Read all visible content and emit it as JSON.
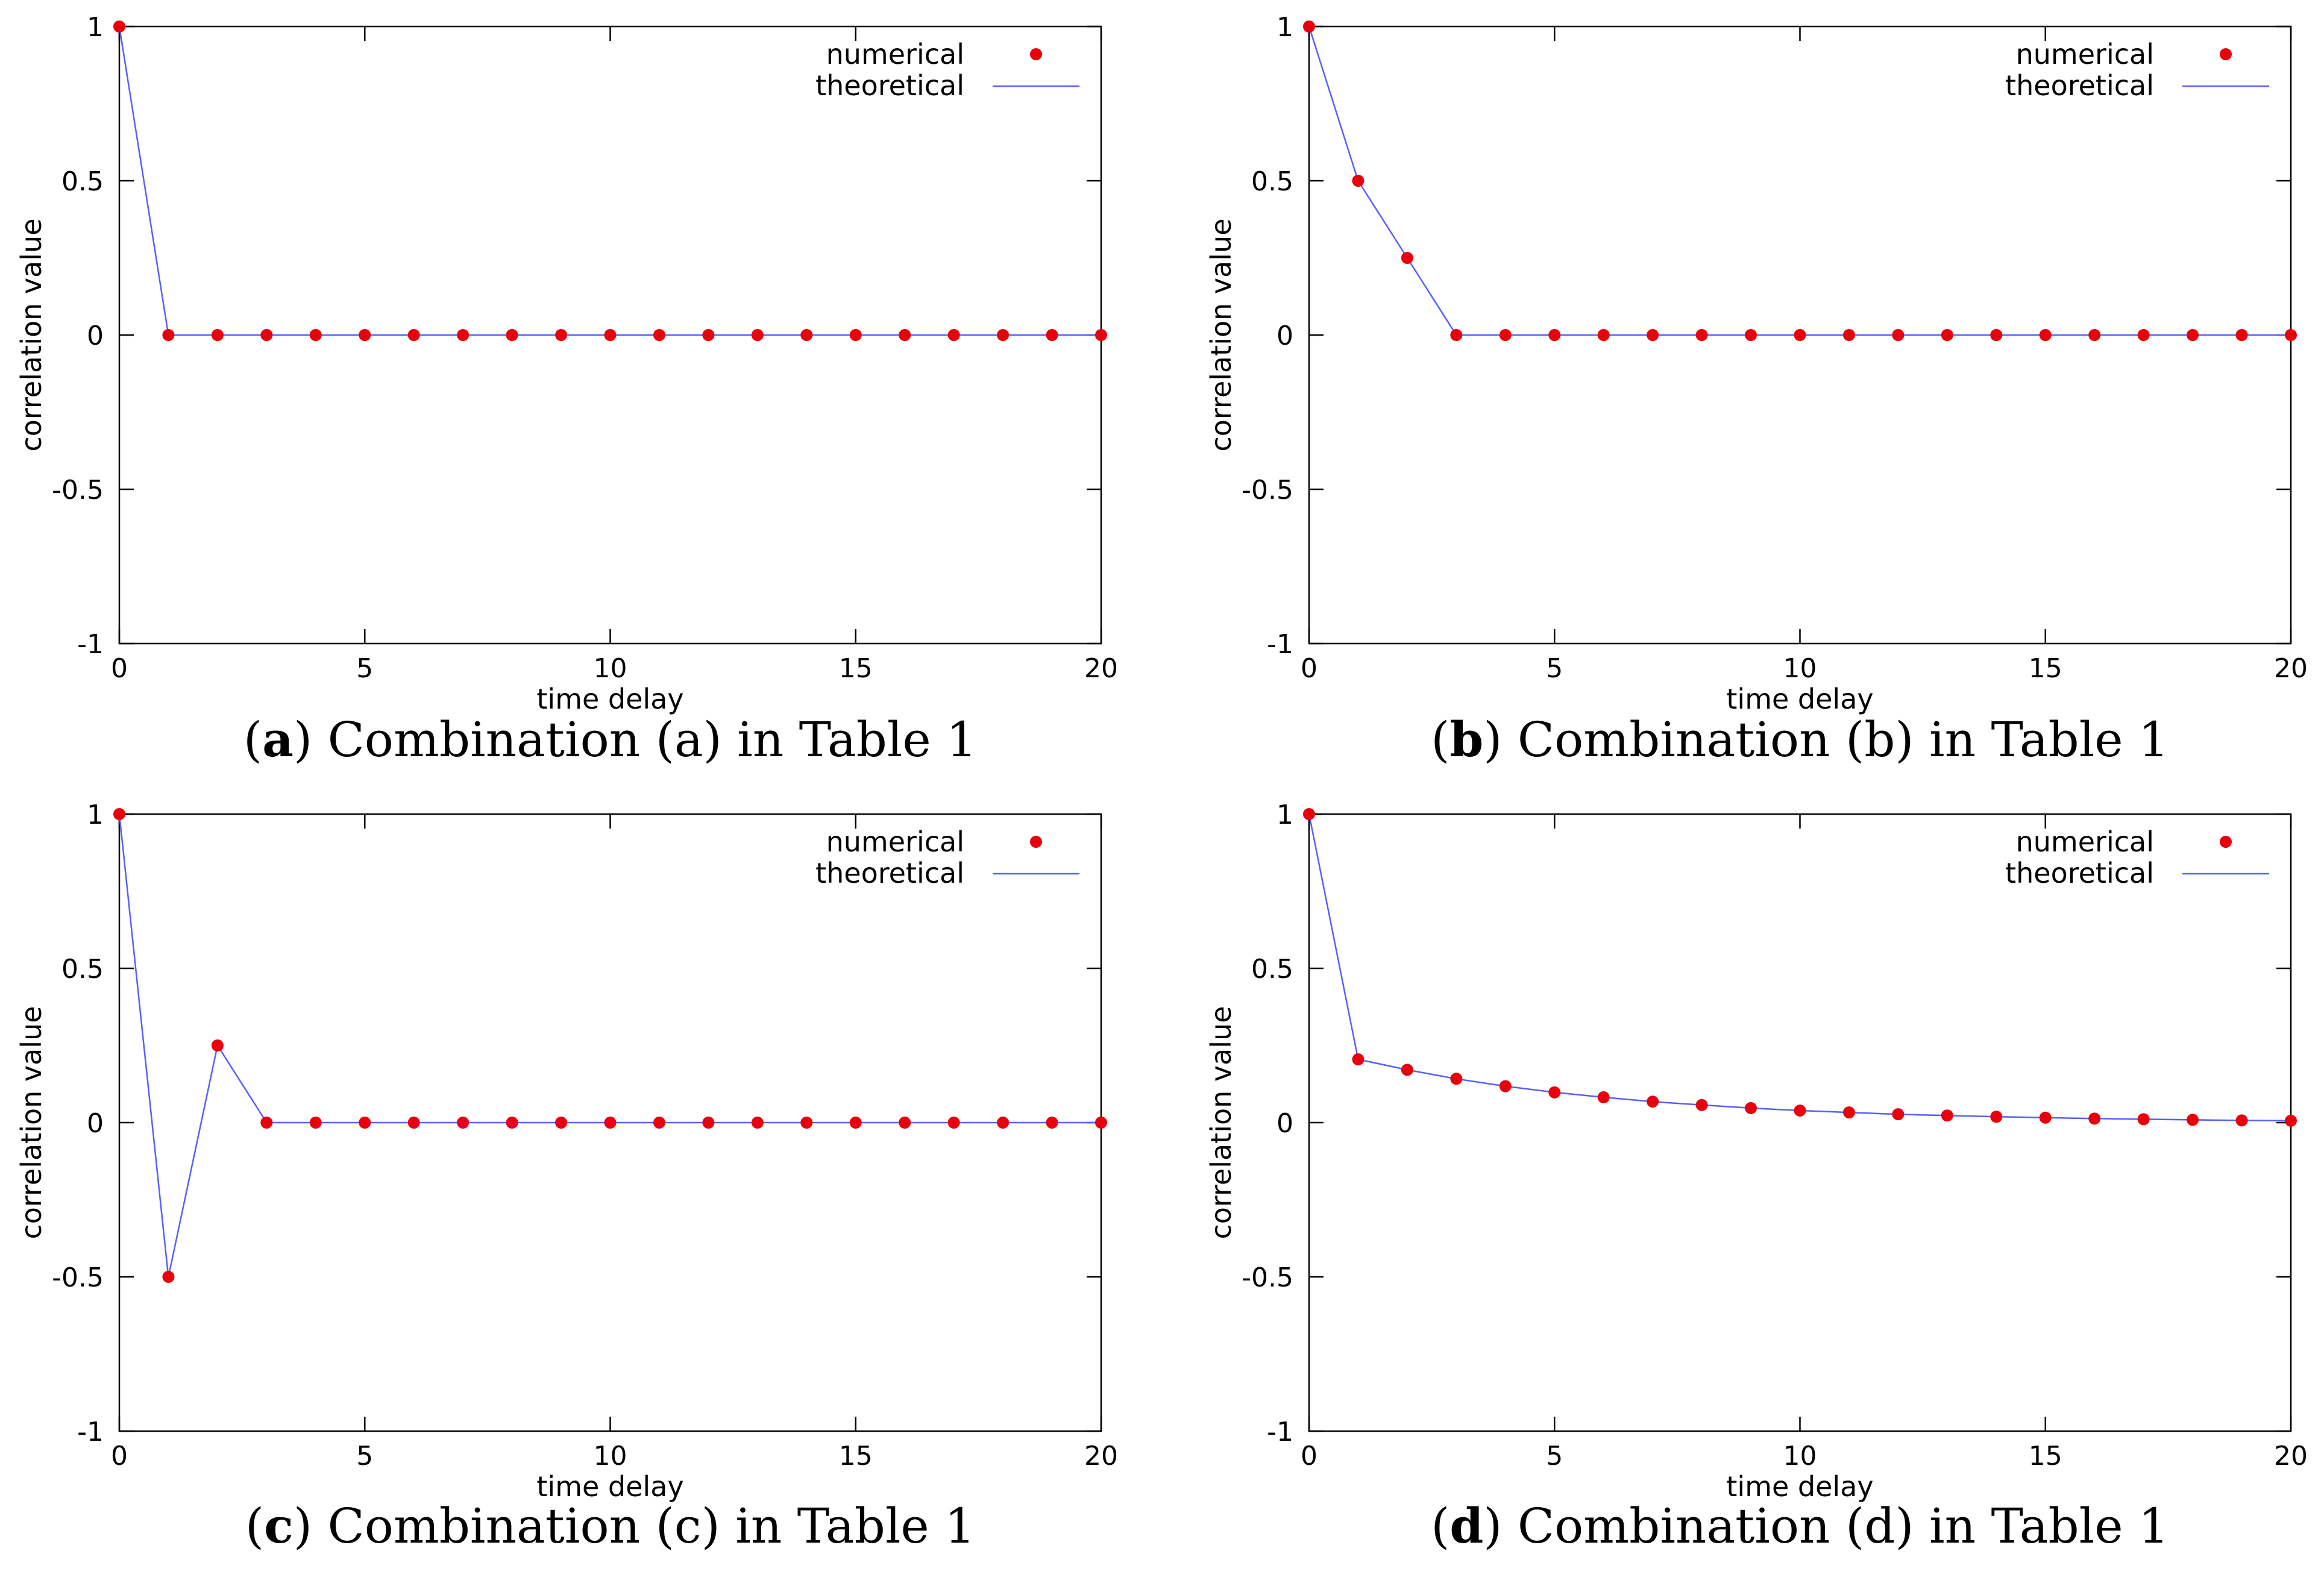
{
  "chart_data": [
    {
      "type": "scatter",
      "caption_letter": "a",
      "caption_rest": "Combination (a) in Table 1",
      "xlabel": "time delay",
      "ylabel": "correlation value",
      "xlim": [
        0,
        20
      ],
      "ylim": [
        -1,
        1
      ],
      "xticks": [
        "0",
        "5",
        "10",
        "15",
        "20"
      ],
      "yticks": [
        "-1",
        "-0.5",
        "0",
        "0.5",
        "1"
      ],
      "legend": [
        "numerical",
        "theoretical"
      ],
      "legend_position": "top-right",
      "x": [
        0,
        1,
        2,
        3,
        4,
        5,
        6,
        7,
        8,
        9,
        10,
        11,
        12,
        13,
        14,
        15,
        16,
        17,
        18,
        19,
        20
      ],
      "series": [
        {
          "name": "numerical",
          "style": "points",
          "color": "#e8000b",
          "values": [
            1,
            0,
            0,
            0,
            0,
            0,
            0,
            0,
            0,
            0,
            0,
            0,
            0,
            0,
            0,
            0,
            0,
            0,
            0,
            0,
            0
          ]
        },
        {
          "name": "theoretical",
          "style": "line",
          "color": "#5560ff",
          "values": [
            1,
            0,
            0,
            0,
            0,
            0,
            0,
            0,
            0,
            0,
            0,
            0,
            0,
            0,
            0,
            0,
            0,
            0,
            0,
            0,
            0
          ]
        }
      ]
    },
    {
      "type": "scatter",
      "caption_letter": "b",
      "caption_rest": "Combination (b) in Table 1",
      "xlabel": "time delay",
      "ylabel": "correlation value",
      "xlim": [
        0,
        20
      ],
      "ylim": [
        -1,
        1
      ],
      "xticks": [
        "0",
        "5",
        "10",
        "15",
        "20"
      ],
      "yticks": [
        "-1",
        "-0.5",
        "0",
        "0.5",
        "1"
      ],
      "legend": [
        "numerical",
        "theoretical"
      ],
      "legend_position": "top-right",
      "x": [
        0,
        1,
        2,
        3,
        4,
        5,
        6,
        7,
        8,
        9,
        10,
        11,
        12,
        13,
        14,
        15,
        16,
        17,
        18,
        19,
        20
      ],
      "series": [
        {
          "name": "numerical",
          "style": "points",
          "color": "#e8000b",
          "values": [
            1,
            0.5,
            0.25,
            0,
            0,
            0,
            0,
            0,
            0,
            0,
            0,
            0,
            0,
            0,
            0,
            0,
            0,
            0,
            0,
            0,
            0
          ]
        },
        {
          "name": "theoretical",
          "style": "line",
          "color": "#5560ff",
          "values": [
            1,
            0.5,
            0.25,
            0,
            0,
            0,
            0,
            0,
            0,
            0,
            0,
            0,
            0,
            0,
            0,
            0,
            0,
            0,
            0,
            0,
            0
          ]
        }
      ]
    },
    {
      "type": "scatter",
      "caption_letter": "c",
      "caption_rest": "Combination (c) in Table 1",
      "xlabel": "time delay",
      "ylabel": "correlation value",
      "xlim": [
        0,
        20
      ],
      "ylim": [
        -1,
        1
      ],
      "xticks": [
        "0",
        "5",
        "10",
        "15",
        "20"
      ],
      "yticks": [
        "-1",
        "-0.5",
        "0",
        "0.5",
        "1"
      ],
      "legend": [
        "numerical",
        "theoretical"
      ],
      "legend_position": "top-right",
      "x": [
        0,
        1,
        2,
        3,
        4,
        5,
        6,
        7,
        8,
        9,
        10,
        11,
        12,
        13,
        14,
        15,
        16,
        17,
        18,
        19,
        20
      ],
      "series": [
        {
          "name": "numerical",
          "style": "points",
          "color": "#e8000b",
          "values": [
            1,
            -0.5,
            0.25,
            0,
            0,
            0,
            0,
            0,
            0,
            0,
            0,
            0,
            0,
            0,
            0,
            0,
            0,
            0,
            0,
            0,
            0
          ]
        },
        {
          "name": "theoretical",
          "style": "line",
          "color": "#5560ff",
          "values": [
            1,
            -0.5,
            0.25,
            0,
            0,
            0,
            0,
            0,
            0,
            0,
            0,
            0,
            0,
            0,
            0,
            0,
            0,
            0,
            0,
            0,
            0
          ]
        }
      ]
    },
    {
      "type": "scatter",
      "caption_letter": "d",
      "caption_rest": "Combination (d) in Table 1",
      "xlabel": "time delay",
      "ylabel": "correlation value",
      "xlim": [
        0,
        20
      ],
      "ylim": [
        -1,
        1
      ],
      "xticks": [
        "0",
        "5",
        "10",
        "15",
        "20"
      ],
      "yticks": [
        "-1",
        "-0.5",
        "0",
        "0.5",
        "1"
      ],
      "legend": [
        "numerical",
        "theoretical"
      ],
      "legend_position": "top-right",
      "x": [
        0,
        1,
        2,
        3,
        4,
        5,
        6,
        7,
        8,
        9,
        10,
        11,
        12,
        13,
        14,
        15,
        16,
        17,
        18,
        19,
        20
      ],
      "series": [
        {
          "name": "numerical",
          "style": "points",
          "color": "#e8000b",
          "values": [
            1,
            0.205,
            0.171,
            0.142,
            0.118,
            0.098,
            0.082,
            0.068,
            0.057,
            0.047,
            0.039,
            0.033,
            0.027,
            0.023,
            0.019,
            0.016,
            0.013,
            0.011,
            0.009,
            0.007,
            0.006
          ]
        },
        {
          "name": "theoretical",
          "style": "line",
          "color": "#5560ff",
          "values": [
            1,
            0.205,
            0.171,
            0.142,
            0.118,
            0.098,
            0.082,
            0.068,
            0.057,
            0.047,
            0.039,
            0.033,
            0.027,
            0.023,
            0.019,
            0.016,
            0.013,
            0.011,
            0.009,
            0.007,
            0.006
          ]
        }
      ]
    }
  ]
}
